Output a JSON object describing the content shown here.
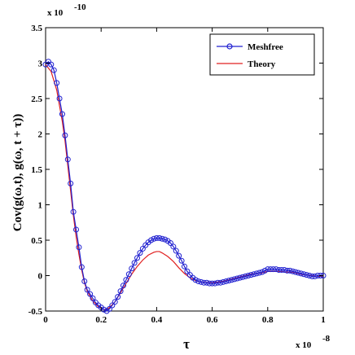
{
  "chart_data": {
    "type": "line",
    "xlabel": "τ",
    "ylabel": "Cov(g(ω,t),  g(ω, t + τ))",
    "x_multiplier": "x 10",
    "x_exponent": "-8",
    "y_multiplier": "x 10",
    "y_exponent": "-10",
    "xlim": [
      0,
      1
    ],
    "ylim": [
      -0.5,
      3.5
    ],
    "xticks": [
      0,
      0.2,
      0.4,
      0.6,
      0.8,
      1
    ],
    "xtick_labels": [
      "0",
      "0.2",
      "0.4",
      "0.6",
      "0.8",
      "1"
    ],
    "yticks": [
      -0.5,
      0,
      0.5,
      1,
      1.5,
      2,
      2.5,
      3,
      3.5
    ],
    "ytick_labels": [
      "-0.5",
      "0",
      "0.5",
      "1",
      "1.5",
      "2",
      "2.5",
      "3",
      "3.5"
    ],
    "grid": false,
    "legend_position": "top-right",
    "series": [
      {
        "name": "Meshfree",
        "color": "#2020d0",
        "marker": "circle",
        "points": [
          [
            0.0,
            2.98
          ],
          [
            0.01,
            3.02
          ],
          [
            0.02,
            2.98
          ],
          [
            0.03,
            2.9
          ],
          [
            0.04,
            2.72
          ],
          [
            0.05,
            2.5
          ],
          [
            0.06,
            2.28
          ],
          [
            0.07,
            1.98
          ],
          [
            0.08,
            1.64
          ],
          [
            0.09,
            1.3
          ],
          [
            0.1,
            0.9
          ],
          [
            0.11,
            0.65
          ],
          [
            0.12,
            0.4
          ],
          [
            0.13,
            0.12
          ],
          [
            0.14,
            -0.08
          ],
          [
            0.15,
            -0.2
          ],
          [
            0.16,
            -0.26
          ],
          [
            0.17,
            -0.32
          ],
          [
            0.18,
            -0.38
          ],
          [
            0.19,
            -0.42
          ],
          [
            0.2,
            -0.45
          ],
          [
            0.21,
            -0.48
          ],
          [
            0.22,
            -0.5
          ],
          [
            0.23,
            -0.47
          ],
          [
            0.24,
            -0.42
          ],
          [
            0.25,
            -0.37
          ],
          [
            0.26,
            -0.3
          ],
          [
            0.27,
            -0.22
          ],
          [
            0.28,
            -0.14
          ],
          [
            0.29,
            -0.06
          ],
          [
            0.3,
            0.02
          ],
          [
            0.31,
            0.1
          ],
          [
            0.32,
            0.18
          ],
          [
            0.33,
            0.25
          ],
          [
            0.34,
            0.32
          ],
          [
            0.35,
            0.38
          ],
          [
            0.36,
            0.43
          ],
          [
            0.37,
            0.47
          ],
          [
            0.38,
            0.5
          ],
          [
            0.39,
            0.52
          ],
          [
            0.4,
            0.53
          ],
          [
            0.41,
            0.53
          ],
          [
            0.42,
            0.52
          ],
          [
            0.43,
            0.51
          ],
          [
            0.44,
            0.49
          ],
          [
            0.45,
            0.46
          ],
          [
            0.46,
            0.41
          ],
          [
            0.47,
            0.35
          ],
          [
            0.48,
            0.28
          ],
          [
            0.49,
            0.21
          ],
          [
            0.5,
            0.13
          ],
          [
            0.51,
            0.06
          ],
          [
            0.52,
            0.01
          ],
          [
            0.53,
            -0.03
          ],
          [
            0.54,
            -0.06
          ],
          [
            0.55,
            -0.08
          ],
          [
            0.56,
            -0.09
          ],
          [
            0.57,
            -0.1
          ],
          [
            0.58,
            -0.1
          ],
          [
            0.59,
            -0.11
          ],
          [
            0.6,
            -0.11
          ],
          [
            0.61,
            -0.11
          ],
          [
            0.62,
            -0.1
          ],
          [
            0.63,
            -0.1
          ],
          [
            0.64,
            -0.09
          ],
          [
            0.65,
            -0.08
          ],
          [
            0.66,
            -0.07
          ],
          [
            0.67,
            -0.06
          ],
          [
            0.68,
            -0.05
          ],
          [
            0.69,
            -0.04
          ],
          [
            0.7,
            -0.03
          ],
          [
            0.71,
            -0.02
          ],
          [
            0.72,
            -0.01
          ],
          [
            0.73,
            0.0
          ],
          [
            0.74,
            0.01
          ],
          [
            0.75,
            0.02
          ],
          [
            0.76,
            0.03
          ],
          [
            0.77,
            0.04
          ],
          [
            0.78,
            0.05
          ],
          [
            0.79,
            0.07
          ],
          [
            0.8,
            0.09
          ],
          [
            0.81,
            0.09
          ],
          [
            0.82,
            0.09
          ],
          [
            0.83,
            0.09
          ],
          [
            0.84,
            0.08
          ],
          [
            0.85,
            0.08
          ],
          [
            0.86,
            0.08
          ],
          [
            0.87,
            0.07
          ],
          [
            0.88,
            0.07
          ],
          [
            0.89,
            0.06
          ],
          [
            0.9,
            0.05
          ],
          [
            0.91,
            0.04
          ],
          [
            0.92,
            0.03
          ],
          [
            0.93,
            0.02
          ],
          [
            0.94,
            0.01
          ],
          [
            0.95,
            0.0
          ],
          [
            0.96,
            -0.01
          ],
          [
            0.97,
            -0.01
          ],
          [
            0.98,
            0.0
          ],
          [
            0.99,
            0.0
          ],
          [
            1.0,
            0.0
          ]
        ]
      },
      {
        "name": "Theory",
        "color": "#e02020",
        "marker": "none",
        "points": [
          [
            0.0,
            2.98
          ],
          [
            0.02,
            2.88
          ],
          [
            0.04,
            2.62
          ],
          [
            0.06,
            2.18
          ],
          [
            0.07,
            1.9
          ],
          [
            0.08,
            1.55
          ],
          [
            0.09,
            1.2
          ],
          [
            0.1,
            0.85
          ],
          [
            0.11,
            0.55
          ],
          [
            0.12,
            0.3
          ],
          [
            0.13,
            0.08
          ],
          [
            0.14,
            -0.1
          ],
          [
            0.15,
            -0.22
          ],
          [
            0.17,
            -0.36
          ],
          [
            0.19,
            -0.44
          ],
          [
            0.21,
            -0.48
          ],
          [
            0.22,
            -0.48
          ],
          [
            0.23,
            -0.45
          ],
          [
            0.25,
            -0.37
          ],
          [
            0.27,
            -0.24
          ],
          [
            0.29,
            -0.11
          ],
          [
            0.31,
            0.02
          ],
          [
            0.33,
            0.13
          ],
          [
            0.35,
            0.22
          ],
          [
            0.37,
            0.29
          ],
          [
            0.39,
            0.33
          ],
          [
            0.4,
            0.34
          ],
          [
            0.41,
            0.34
          ],
          [
            0.42,
            0.32
          ],
          [
            0.44,
            0.27
          ],
          [
            0.46,
            0.2
          ],
          [
            0.48,
            0.11
          ],
          [
            0.5,
            0.03
          ],
          [
            0.52,
            -0.03
          ],
          [
            0.54,
            -0.07
          ],
          [
            0.56,
            -0.09
          ],
          [
            0.58,
            -0.1
          ],
          [
            0.6,
            -0.1
          ],
          [
            0.62,
            -0.09
          ],
          [
            0.64,
            -0.08
          ],
          [
            0.66,
            -0.06
          ],
          [
            0.68,
            -0.04
          ],
          [
            0.7,
            -0.02
          ],
          [
            0.72,
            0.0
          ],
          [
            0.74,
            0.02
          ],
          [
            0.76,
            0.03
          ],
          [
            0.78,
            0.04
          ],
          [
            0.8,
            0.06
          ],
          [
            0.82,
            0.06
          ],
          [
            0.84,
            0.06
          ],
          [
            0.86,
            0.05
          ],
          [
            0.88,
            0.05
          ],
          [
            0.9,
            0.04
          ],
          [
            0.92,
            0.02
          ],
          [
            0.94,
            0.01
          ],
          [
            0.96,
            0.0
          ],
          [
            0.98,
            -0.01
          ],
          [
            1.0,
            -0.01
          ]
        ]
      }
    ]
  }
}
